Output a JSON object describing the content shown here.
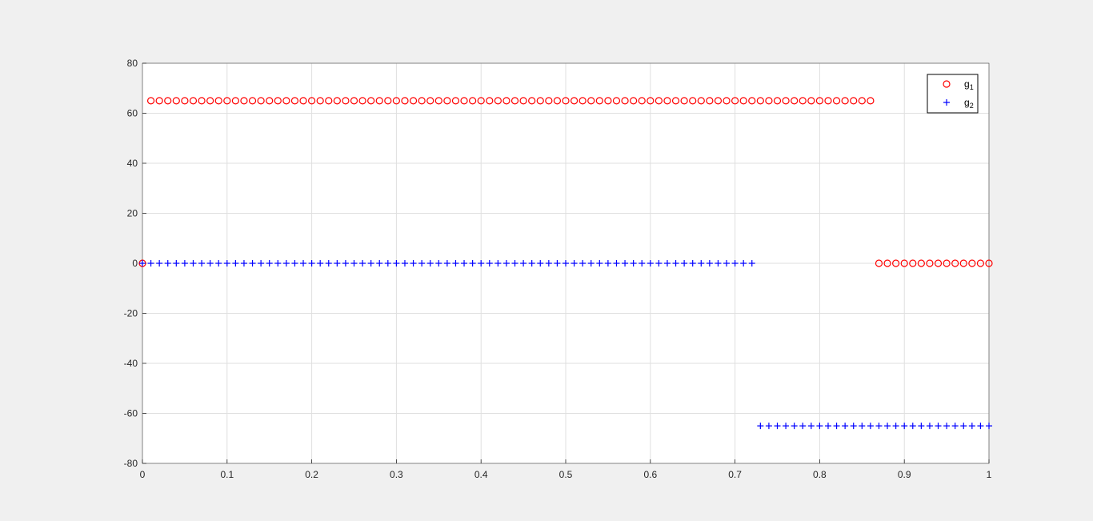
{
  "chart_data": {
    "type": "scatter",
    "xlim": [
      0,
      1
    ],
    "ylim": [
      -80,
      80
    ],
    "x_ticks": [
      0,
      0.1,
      0.2,
      0.3,
      0.4,
      0.5,
      0.6,
      0.7,
      0.8,
      0.9,
      1
    ],
    "x_tick_labels": [
      "0",
      "0.1",
      "0.2",
      "0.3",
      "0.4",
      "0.5",
      "0.6",
      "0.7",
      "0.8",
      "0.9",
      "1"
    ],
    "y_ticks": [
      80,
      60,
      40,
      20,
      0,
      -20,
      -40,
      -60,
      -80
    ],
    "y_tick_labels": [
      "80",
      "60",
      "40",
      "20",
      "0",
      "-20",
      "-40",
      "-60",
      "-80"
    ],
    "grid": true,
    "legend_position": "top-right",
    "series": [
      {
        "name_base": "g",
        "name_sub": "1",
        "marker": "circle",
        "color": "#ff0000",
        "segments": [
          {
            "x_start": 0,
            "x_end": 0,
            "x_step": 0.01,
            "y": 0
          },
          {
            "x_start": 0.01,
            "x_end": 0.86,
            "x_step": 0.01,
            "y": 65
          },
          {
            "x_start": 0.87,
            "x_end": 1.0,
            "x_step": 0.01,
            "y": 0
          }
        ]
      },
      {
        "name_base": "g",
        "name_sub": "2",
        "marker": "plus",
        "color": "#0000ff",
        "segments": [
          {
            "x_start": 0,
            "x_end": 0.72,
            "x_step": 0.01,
            "y": 0
          },
          {
            "x_start": 0.73,
            "x_end": 1.0,
            "x_step": 0.01,
            "y": -65
          }
        ]
      }
    ]
  }
}
